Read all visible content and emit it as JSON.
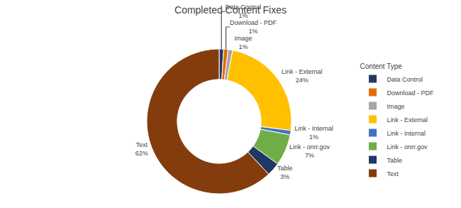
{
  "chart_data": {
    "type": "pie",
    "title": "Completed Content Fixes",
    "categories": [
      "Data Control",
      "Download - PDF",
      "Image",
      "Link - External",
      "Link - Internal",
      "Link - onrr.gov",
      "Table",
      "Text"
    ],
    "values": [
      1,
      1,
      1,
      24,
      1,
      7,
      3,
      62
    ],
    "value_labels": [
      "1%",
      "1%",
      "1%",
      "24%",
      "1%",
      "7%",
      "3%",
      "62%"
    ],
    "data_labels": true,
    "colors": [
      "#203864",
      "#E36C09",
      "#A5A5A5",
      "#FFC000",
      "#4472C4",
      "#70AD47",
      "#1F3864",
      "#843C0C"
    ],
    "legend": "right",
    "legend_title": "Content Type"
  }
}
